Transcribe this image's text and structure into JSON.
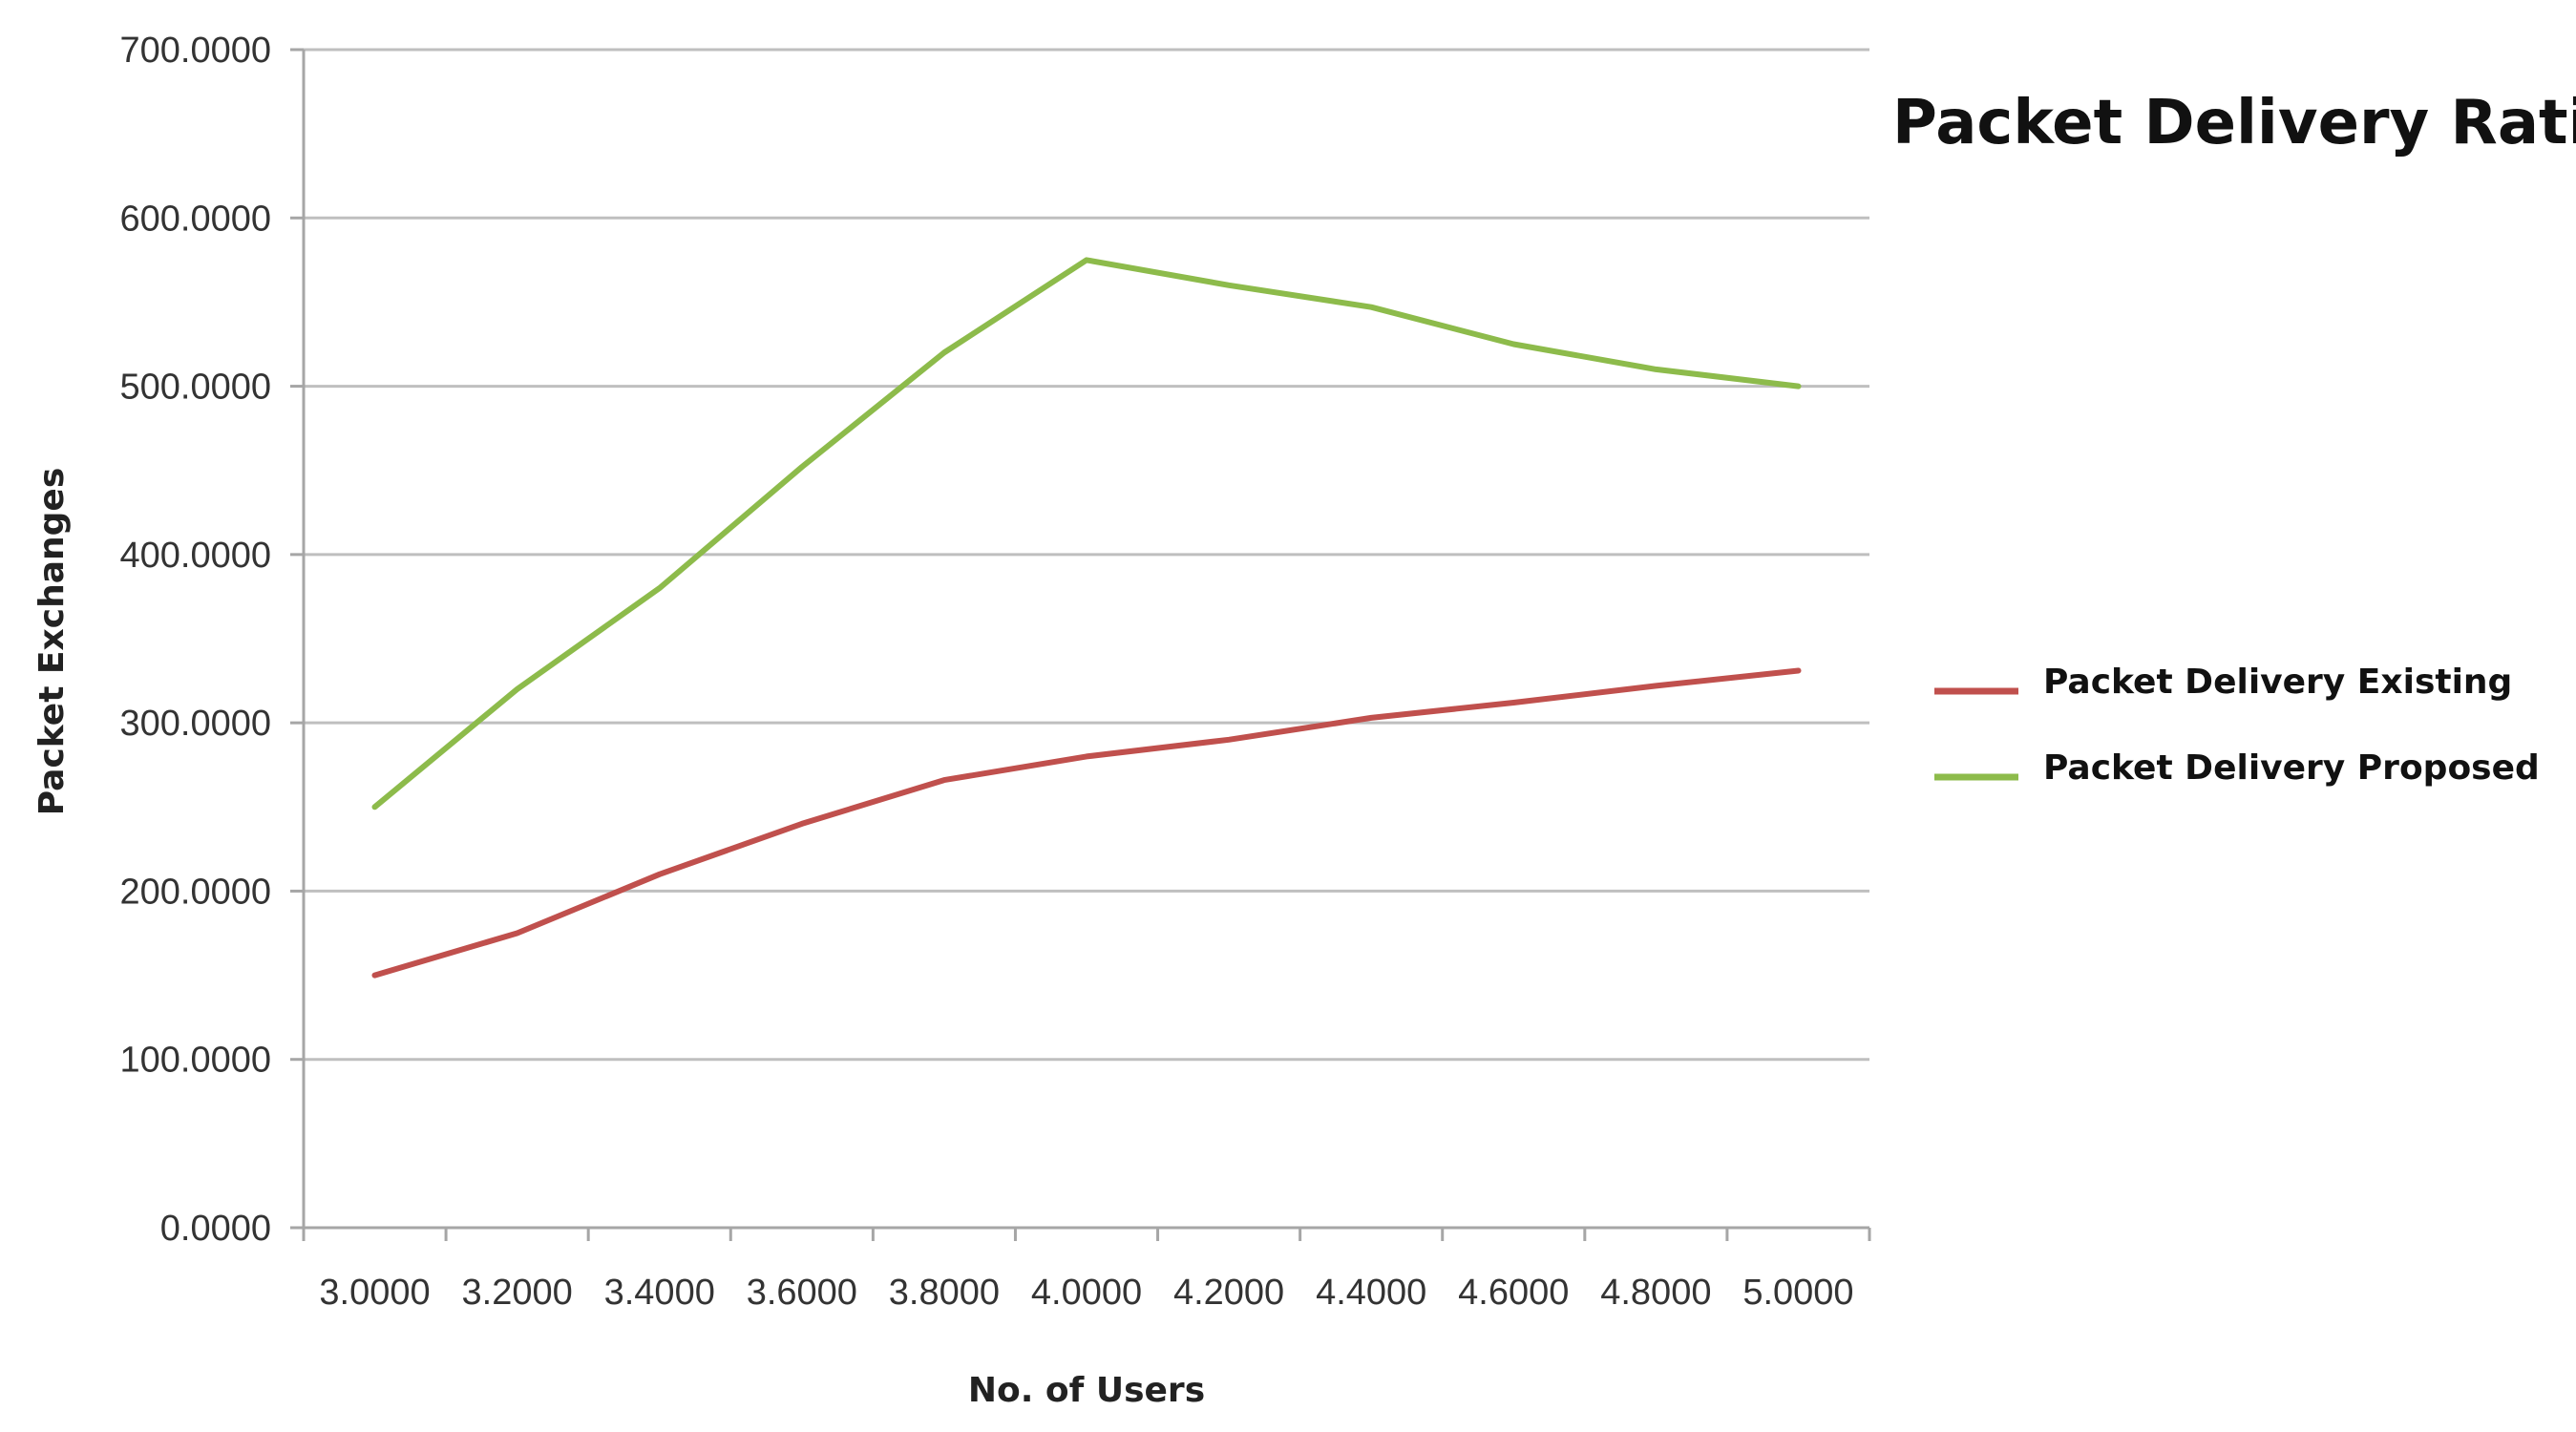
{
  "chart_data": {
    "type": "line",
    "title": "Packet Delivery Ratio",
    "xlabel": "No. of Users",
    "ylabel": "Packet Exchanges",
    "x": [
      3.0,
      3.2,
      3.4,
      3.6,
      3.8,
      4.0,
      4.2,
      4.4,
      4.6,
      4.8,
      5.0
    ],
    "x_tick_labels": [
      "3.0000",
      "3.2000",
      "3.4000",
      "3.6000",
      "3.8000",
      "4.0000",
      "4.2000",
      "4.4000",
      "4.6000",
      "4.8000",
      "5.0000"
    ],
    "y_tick_labels": [
      "0.0000",
      "100.0000",
      "200.0000",
      "300.0000",
      "400.0000",
      "500.0000",
      "600.0000",
      "700.0000"
    ],
    "y_ticks": [
      0,
      100,
      200,
      300,
      400,
      500,
      600,
      700
    ],
    "xlim": [
      2.9,
      5.1
    ],
    "ylim": [
      0,
      700
    ],
    "grid": "horizontal",
    "legend_position": "right",
    "series": [
      {
        "name": "Packet Delivery Existing",
        "color": "#c0504d",
        "values": [
          150,
          175,
          210,
          240,
          266,
          280,
          290,
          303,
          312,
          322,
          331
        ]
      },
      {
        "name": "Packet Delivery Proposed",
        "color": "#8dbb4b",
        "values": [
          250,
          320,
          380,
          452,
          520,
          575,
          560,
          547,
          525,
          510,
          500
        ]
      }
    ]
  }
}
